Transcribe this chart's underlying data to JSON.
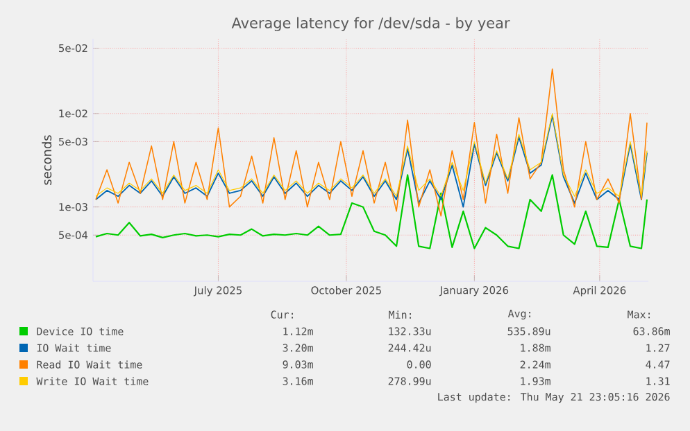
{
  "chart_data": {
    "type": "line",
    "title": "Average latency for /dev/sda - by year",
    "ylabel": "seconds",
    "log": "y",
    "grid": true,
    "legend": "bottom",
    "xlim": [
      "2025-04-02",
      "2026-05-06"
    ],
    "xticks": [
      {
        "value": "2025-07-01",
        "label": "July 2025"
      },
      {
        "value": "2025-10-01",
        "label": "October 2025"
      },
      {
        "value": "2026-01-01",
        "label": "January 2026"
      },
      {
        "value": "2026-04-01",
        "label": "April 2026"
      }
    ],
    "ylim": [
      0.00016,
      0.063
    ],
    "yticks": [
      {
        "value": 0.0005,
        "label": "5e-04"
      },
      {
        "value": 0.001,
        "label": "1e-03"
      },
      {
        "value": 0.005,
        "label": "5e-03"
      },
      {
        "value": 0.01,
        "label": "1e-02"
      },
      {
        "value": 0.05,
        "label": "5e-02"
      }
    ],
    "x": [
      "2025-04-04",
      "2025-04-12",
      "2025-04-20",
      "2025-04-28",
      "2025-05-06",
      "2025-05-14",
      "2025-05-22",
      "2025-05-30",
      "2025-06-07",
      "2025-06-15",
      "2025-06-23",
      "2025-07-01",
      "2025-07-09",
      "2025-07-17",
      "2025-07-25",
      "2025-08-02",
      "2025-08-10",
      "2025-08-18",
      "2025-08-26",
      "2025-09-03",
      "2025-09-11",
      "2025-09-19",
      "2025-09-27",
      "2025-10-05",
      "2025-10-13",
      "2025-10-21",
      "2025-10-29",
      "2025-11-06",
      "2025-11-14",
      "2025-11-22",
      "2025-11-30",
      "2025-12-08",
      "2025-12-16",
      "2025-12-24",
      "2026-01-01",
      "2026-01-09",
      "2026-01-17",
      "2026-01-25",
      "2026-02-02",
      "2026-02-10",
      "2026-02-18",
      "2026-02-26",
      "2026-03-06",
      "2026-03-14",
      "2026-03-22",
      "2026-03-30",
      "2026-04-07",
      "2026-04-15",
      "2026-04-23",
      "2026-05-01",
      "2026-05-05"
    ],
    "series": [
      {
        "name": "Device IO time",
        "color": "#00cc00",
        "values": [
          0.00048,
          0.00052,
          0.0005,
          0.00068,
          0.00049,
          0.00051,
          0.00047,
          0.0005,
          0.00052,
          0.00049,
          0.0005,
          0.00048,
          0.00051,
          0.0005,
          0.00058,
          0.00049,
          0.00051,
          0.0005,
          0.00052,
          0.0005,
          0.00062,
          0.0005,
          0.00051,
          0.0011,
          0.001,
          0.00055,
          0.0005,
          0.00038,
          0.0022,
          0.00038,
          0.00036,
          0.0014,
          0.00037,
          0.0009,
          0.00036,
          0.0006,
          0.0005,
          0.00038,
          0.00036,
          0.0012,
          0.0009,
          0.0022,
          0.0005,
          0.0004,
          0.0009,
          0.00038,
          0.00037,
          0.0012,
          0.00038,
          0.00036,
          0.0012
        ]
      },
      {
        "name": "IO Wait time",
        "color": "#0066b3",
        "values": [
          0.0012,
          0.0015,
          0.0013,
          0.0017,
          0.0014,
          0.0019,
          0.0013,
          0.0021,
          0.0014,
          0.0016,
          0.0013,
          0.0023,
          0.0014,
          0.0015,
          0.0019,
          0.0013,
          0.0021,
          0.0014,
          0.0018,
          0.0013,
          0.0017,
          0.0014,
          0.0019,
          0.0015,
          0.0021,
          0.0013,
          0.0019,
          0.0012,
          0.0042,
          0.0011,
          0.0019,
          0.0012,
          0.0028,
          0.001,
          0.0047,
          0.0017,
          0.0038,
          0.0019,
          0.0056,
          0.0023,
          0.0028,
          0.0095,
          0.0021,
          0.0011,
          0.0023,
          0.0012,
          0.0015,
          0.0012,
          0.0047,
          0.0012,
          0.0038
        ]
      },
      {
        "name": "Read IO Wait time",
        "color": "#ff8000",
        "values": [
          0.0012,
          0.0025,
          0.0011,
          0.003,
          0.0014,
          0.0045,
          0.0012,
          0.005,
          0.0011,
          0.003,
          0.0012,
          0.007,
          0.001,
          0.0013,
          0.0035,
          0.0011,
          0.0055,
          0.0012,
          0.004,
          0.001,
          0.003,
          0.0012,
          0.005,
          0.0013,
          0.004,
          0.0011,
          0.003,
          0.0009,
          0.0085,
          0.001,
          0.0025,
          0.0008,
          0.004,
          0.0012,
          0.008,
          0.0011,
          0.006,
          0.0014,
          0.009,
          0.002,
          0.003,
          0.03,
          0.0025,
          0.001,
          0.005,
          0.0012,
          0.002,
          0.0011,
          0.01,
          0.0012,
          0.008
        ]
      },
      {
        "name": "Write IO Wait time",
        "color": "#ffcc00",
        "values": [
          0.0013,
          0.0016,
          0.0014,
          0.0018,
          0.0015,
          0.002,
          0.0014,
          0.0022,
          0.0015,
          0.0017,
          0.0014,
          0.0025,
          0.0015,
          0.0016,
          0.002,
          0.0014,
          0.0022,
          0.0015,
          0.0019,
          0.0014,
          0.0018,
          0.0015,
          0.002,
          0.0016,
          0.0022,
          0.0014,
          0.002,
          0.0013,
          0.0045,
          0.0015,
          0.002,
          0.0013,
          0.003,
          0.0015,
          0.005,
          0.0018,
          0.004,
          0.002,
          0.006,
          0.0025,
          0.003,
          0.01,
          0.0022,
          0.0013,
          0.0025,
          0.0014,
          0.0016,
          0.0013,
          0.005,
          0.0013,
          0.004
        ]
      }
    ],
    "annotations": [
      "Cur:",
      "Min:",
      "Avg:",
      "Max:",
      "1.12m",
      "132.33u",
      "535.89u",
      "63.86m",
      "3.20m",
      "244.42u",
      "1.88m",
      "1.27",
      "9.03m",
      "0.00",
      "2.24m",
      "4.47",
      "3.16m",
      "278.99u",
      "1.93m",
      "1.31",
      "Last update: Thu May 21 23:05:16 2026"
    ]
  }
}
